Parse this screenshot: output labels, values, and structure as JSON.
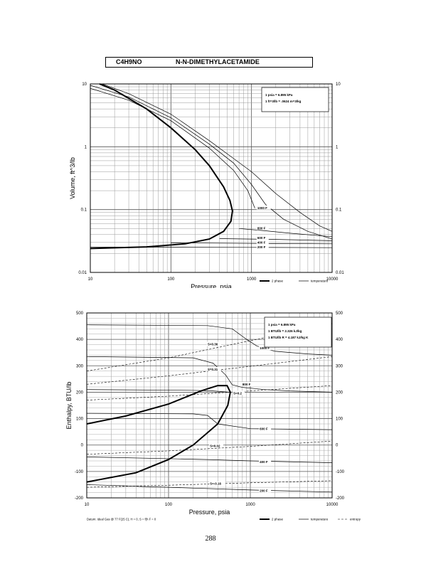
{
  "header": {
    "formula": "C4H9NO",
    "compound": "N-N-DIMETHYLACETAMIDE"
  },
  "page_number": "288",
  "chart_data": [
    {
      "type": "line",
      "xlabel": "Pressure,  psia",
      "ylabel": "Volume, ft^3/lb",
      "x_scale": "log",
      "y_scale": "log",
      "xlim": [
        10,
        10000
      ],
      "ylim": [
        0.01,
        10
      ],
      "x_ticks": [
        "10",
        "100",
        "1000",
        "10000"
      ],
      "y_ticks_left": [
        "0.01",
        "0.1",
        "1",
        "10"
      ],
      "y_ticks_right": [
        "0.01",
        "0.1",
        "1",
        "10"
      ],
      "grid": true,
      "info_box": [
        "1 psia = 6.895 kPa",
        "1 ft^3/lb = .0624 m^3/kg"
      ],
      "legend": {
        "position": "bottom-right",
        "entries": [
          "2 phase",
          "temperature"
        ]
      },
      "curve_labels": [
        {
          "text": "1000 F",
          "x": 1180,
          "y": 0.105
        },
        {
          "text": "800 F",
          "x": 1180,
          "y": 0.05
        },
        {
          "text": "600 F",
          "x": 1180,
          "y": 0.035
        },
        {
          "text": "400 F",
          "x": 1180,
          "y": 0.0295
        },
        {
          "text": "200 F",
          "x": 1180,
          "y": 0.025
        }
      ],
      "series": [
        {
          "role": "2phase",
          "points": [
            [
              10,
              0.024
            ],
            [
              50,
              0.0255
            ],
            [
              150,
              0.0285
            ],
            [
              300,
              0.034
            ],
            [
              450,
              0.045
            ],
            [
              555,
              0.065
            ],
            [
              580,
              0.095
            ],
            [
              540,
              0.14
            ],
            [
              450,
              0.23
            ],
            [
              300,
              0.5
            ],
            [
              200,
              0.9
            ],
            [
              100,
              2.0
            ],
            [
              50,
              4.0
            ],
            [
              20,
              8.0
            ],
            [
              13,
              10
            ]
          ]
        },
        {
          "role": "temperature",
          "points": [
            [
              10,
              8.5
            ],
            [
              30,
              5.5
            ],
            [
              100,
              2.6
            ],
            [
              300,
              0.95
            ],
            [
              600,
              0.42
            ],
            [
              900,
              0.2
            ],
            [
              1100,
              0.105
            ]
          ]
        },
        {
          "role": "temperature",
          "points": [
            [
              10,
              9.5
            ],
            [
              30,
              6.2
            ],
            [
              100,
              2.9
            ],
            [
              300,
              1.1
            ],
            [
              600,
              0.55
            ],
            [
              1000,
              0.25
            ],
            [
              1500,
              0.12
            ],
            [
              2500,
              0.07
            ],
            [
              5000,
              0.045
            ],
            [
              10000,
              0.034
            ]
          ]
        },
        {
          "role": "temperature",
          "points": [
            [
              14,
              10
            ],
            [
              30,
              7.0
            ],
            [
              100,
              3.3
            ],
            [
              300,
              1.25
            ],
            [
              600,
              0.65
            ],
            [
              1000,
              0.4
            ],
            [
              2000,
              0.18
            ],
            [
              4000,
              0.09
            ],
            [
              7000,
              0.055
            ],
            [
              10000,
              0.045
            ]
          ]
        },
        {
          "role": "temperature",
          "points": [
            [
              700,
              0.05
            ],
            [
              1500,
              0.046
            ],
            [
              3000,
              0.042
            ],
            [
              10000,
              0.037
            ]
          ]
        },
        {
          "role": "temperature",
          "points": [
            [
              400,
              0.0345
            ],
            [
              2000,
              0.0335
            ],
            [
              10000,
              0.032
            ]
          ]
        },
        {
          "role": "temperature",
          "points": [
            [
              100,
              0.0295
            ],
            [
              1000,
              0.029
            ],
            [
              10000,
              0.0285
            ]
          ]
        },
        {
          "role": "temperature",
          "points": [
            [
              10,
              0.0253
            ],
            [
              1000,
              0.025
            ],
            [
              10000,
              0.0248
            ]
          ]
        }
      ]
    },
    {
      "type": "line",
      "xlabel": "Pressure,  psia",
      "ylabel": "Enthalpy, BTU/lb",
      "x_scale": "log",
      "y_scale": "linear",
      "xlim": [
        10,
        10000
      ],
      "ylim": [
        -200,
        500
      ],
      "x_ticks": [
        "10",
        "100",
        "1000",
        "10000"
      ],
      "y_ticks_left": [
        "-200",
        "-100",
        "0",
        "100",
        "200",
        "300",
        "400",
        "500"
      ],
      "y_ticks_right": [
        "-200",
        "-100",
        "0",
        "100",
        "200",
        "300",
        "400",
        "500"
      ],
      "grid": true,
      "info_box": [
        "1 psia = 6.895 kPa",
        "1 BTU/lb = 2.326 kJ/kg",
        "1 BTU/lb R = 4.187 kJ/kg K"
      ],
      "legend": {
        "position": "bottom-right",
        "entries": [
          "2 phase",
          "temperature",
          "entropy"
        ]
      },
      "footnote": "Datum: Ideal Gas @ 77 F(25 C), H = 0, S = f(h F = 0",
      "curve_labels": [
        {
          "text": "1000 F",
          "x": 1300,
          "y": 365
        },
        {
          "text": "800 F",
          "x": 800,
          "y": 228
        },
        {
          "text": "600 F",
          "x": 1300,
          "y": 60
        },
        {
          "text": "400 F",
          "x": 1300,
          "y": -65
        },
        {
          "text": "200 F",
          "x": 1300,
          "y": -175
        },
        {
          "text": "S=0.36",
          "x": 300,
          "y": 380
        },
        {
          "text": "S=0.31",
          "x": 300,
          "y": 285
        },
        {
          "text": "S=0.2",
          "x": 620,
          "y": 195
        },
        {
          "text": "S=0.02",
          "x": 320,
          "y": -5
        },
        {
          "text": "S=-0.16",
          "x": 320,
          "y": -148
        }
      ],
      "series": [
        {
          "role": "2phase",
          "points": [
            [
              10,
              80
            ],
            [
              30,
              110
            ],
            [
              100,
              155
            ],
            [
              250,
              205
            ],
            [
              400,
              225
            ],
            [
              520,
              225
            ],
            [
              570,
              200
            ],
            [
              530,
              150
            ],
            [
              400,
              80
            ],
            [
              200,
              0
            ],
            [
              100,
              -55
            ],
            [
              40,
              -105
            ],
            [
              10,
              -140
            ]
          ]
        },
        {
          "role": "temperature",
          "points": [
            [
              10,
              455
            ],
            [
              300,
              452
            ],
            [
              600,
              440
            ],
            [
              900,
              400
            ],
            [
              1200,
              375
            ],
            [
              2000,
              355
            ],
            [
              5000,
              345
            ],
            [
              10000,
              340
            ]
          ]
        },
        {
          "role": "temperature",
          "points": [
            [
              10,
              335
            ],
            [
              200,
              330
            ],
            [
              350,
              310
            ],
            [
              500,
              265
            ],
            [
              600,
              228
            ],
            [
              800,
              218
            ],
            [
              1500,
              210
            ],
            [
              3000,
              205
            ],
            [
              10000,
              200
            ]
          ]
        },
        {
          "role": "temperature",
          "points": [
            [
              10,
              210
            ],
            [
              200,
              207
            ],
            [
              350,
              205
            ],
            [
              550,
              200
            ]
          ]
        },
        {
          "role": "temperature",
          "points": [
            [
              10,
              120
            ],
            [
              200,
              118
            ],
            [
              300,
              112
            ],
            [
              400,
              80
            ],
            [
              1000,
              62
            ],
            [
              3000,
              60
            ],
            [
              10000,
              58
            ]
          ]
        },
        {
          "role": "temperature",
          "points": [
            [
              10,
              -45
            ],
            [
              300,
              -55
            ],
            [
              1000,
              -60
            ],
            [
              10000,
              -67
            ]
          ]
        },
        {
          "role": "temperature",
          "points": [
            [
              10,
              -150
            ],
            [
              1000,
              -170
            ],
            [
              10000,
              -178
            ]
          ]
        },
        {
          "role": "entropy",
          "points": [
            [
              10,
              280
            ],
            [
              100,
              330
            ],
            [
              1000,
              395
            ],
            [
              10000,
              460
            ]
          ]
        },
        {
          "role": "entropy",
          "points": [
            [
              10,
              230
            ],
            [
              100,
              262
            ],
            [
              1000,
              298
            ],
            [
              10000,
              335
            ]
          ]
        },
        {
          "role": "entropy",
          "points": [
            [
              10,
              170
            ],
            [
              100,
              185
            ],
            [
              1000,
              205
            ],
            [
              10000,
              225
            ]
          ]
        },
        {
          "role": "entropy",
          "points": [
            [
              10,
              -35
            ],
            [
              100,
              -22
            ],
            [
              1000,
              -5
            ],
            [
              10000,
              15
            ]
          ]
        },
        {
          "role": "entropy",
          "points": [
            [
              10,
              -160
            ],
            [
              100,
              -152
            ],
            [
              1000,
              -143
            ],
            [
              10000,
              -135
            ]
          ]
        }
      ]
    }
  ]
}
